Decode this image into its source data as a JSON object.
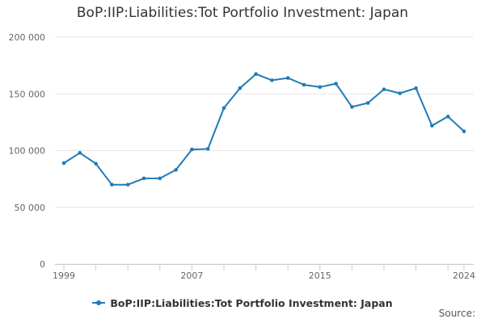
{
  "colors": {
    "series": "#1f7bb6",
    "grid": "#e6e6e6",
    "axis_text": "#666666"
  },
  "footer": {
    "source_label": "Source:"
  },
  "chart_data": {
    "type": "line",
    "title": "BoP:IIP:Liabilities:Tot Portfolio Investment: Japan",
    "xlabel": "",
    "ylabel": "",
    "xlim": [
      1999,
      2024
    ],
    "ylim": [
      0,
      200000
    ],
    "yticks": [
      0,
      50000,
      100000,
      150000,
      200000
    ],
    "ytick_labels": [
      "0",
      "50 000",
      "100 000",
      "150 000",
      "200 000"
    ],
    "xticks": [
      1999,
      2007,
      2015,
      2024
    ],
    "xtick_labels": [
      "1999",
      "2007",
      "2015",
      "2024"
    ],
    "grid": true,
    "legend_position": "bottom",
    "series": [
      {
        "name": "BoP:IIP:Liabilities:Tot Portfolio Investment: Japan",
        "x": [
          1999,
          2000,
          2001,
          2002,
          2003,
          2004,
          2005,
          2006,
          2007,
          2008,
          2009,
          2010,
          2011,
          2012,
          2013,
          2014,
          2015,
          2016,
          2017,
          2018,
          2019,
          2020,
          2021,
          2022,
          2023,
          2024
        ],
        "values": [
          89000,
          98000,
          88500,
          70000,
          70000,
          75500,
          75500,
          83000,
          101000,
          101500,
          137500,
          155000,
          167500,
          162000,
          164000,
          158000,
          156000,
          159000,
          138500,
          142000,
          154000,
          150500,
          155000,
          122000,
          130000,
          117000
        ]
      }
    ]
  }
}
